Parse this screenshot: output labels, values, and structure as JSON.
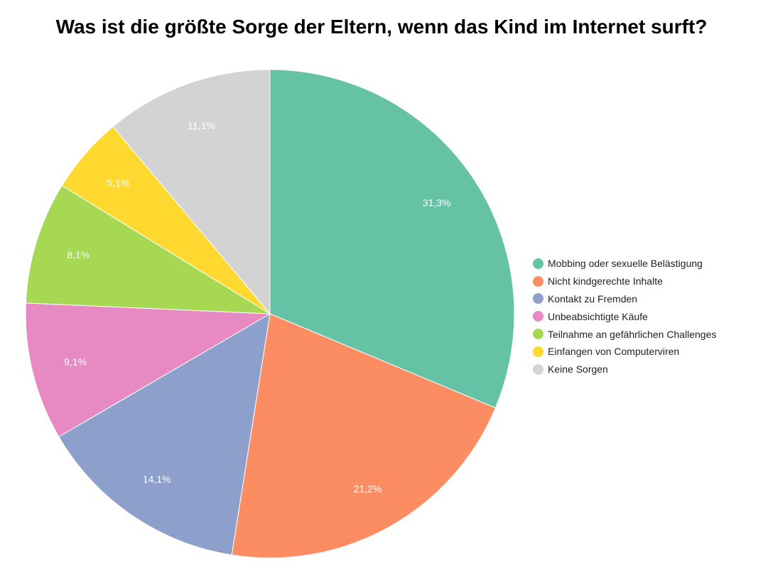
{
  "chart_data": {
    "type": "pie",
    "title": "Was ist die größte Sorge der Eltern, wenn das Kind im Internet surft?",
    "categories": [
      "Mobbing oder sexuelle Belästigung",
      "Nicht kindgerechte Inhalte",
      "Kontakt zu Fremden",
      "Unbeabsichtigte Käufe",
      "Teilnahme an gefährlichen Challenges",
      "Einfangen von Computerviren",
      "Keine Sorgen"
    ],
    "values": [
      31.3,
      21.2,
      14.1,
      9.1,
      8.1,
      5.1,
      11.1
    ],
    "data_labels": [
      "31,3%",
      "21,2%",
      "14,1%",
      "9,1%",
      "8,1%",
      "5,1%",
      "11,1%"
    ],
    "colors": [
      "#66c2a5",
      "#fc8d62",
      "#8da0cb",
      "#e78ac3",
      "#a6d854",
      "#ffd92f",
      "#d3d3d3"
    ],
    "start": "top",
    "direction": "clockwise",
    "legend_position": "right"
  }
}
